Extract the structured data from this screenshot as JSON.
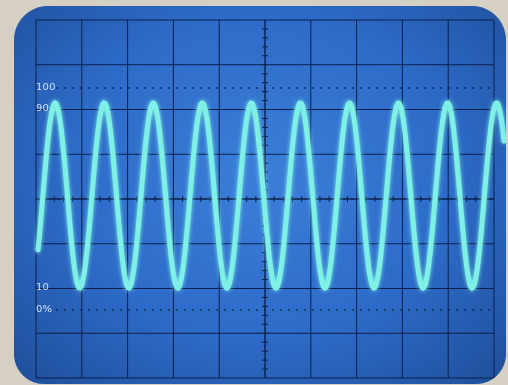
{
  "screen": {
    "graticule": {
      "major_cols": 10,
      "major_rows": 8,
      "color": "#0b1f4a"
    },
    "labels": {
      "top": "100",
      "upper": "90",
      "lower": "10",
      "bottom": "0%"
    },
    "trace": {
      "color": "#7ff0e6",
      "cycles_visible": 9.5,
      "level_top_percent": 90,
      "level_bottom_percent": 10
    }
  }
}
